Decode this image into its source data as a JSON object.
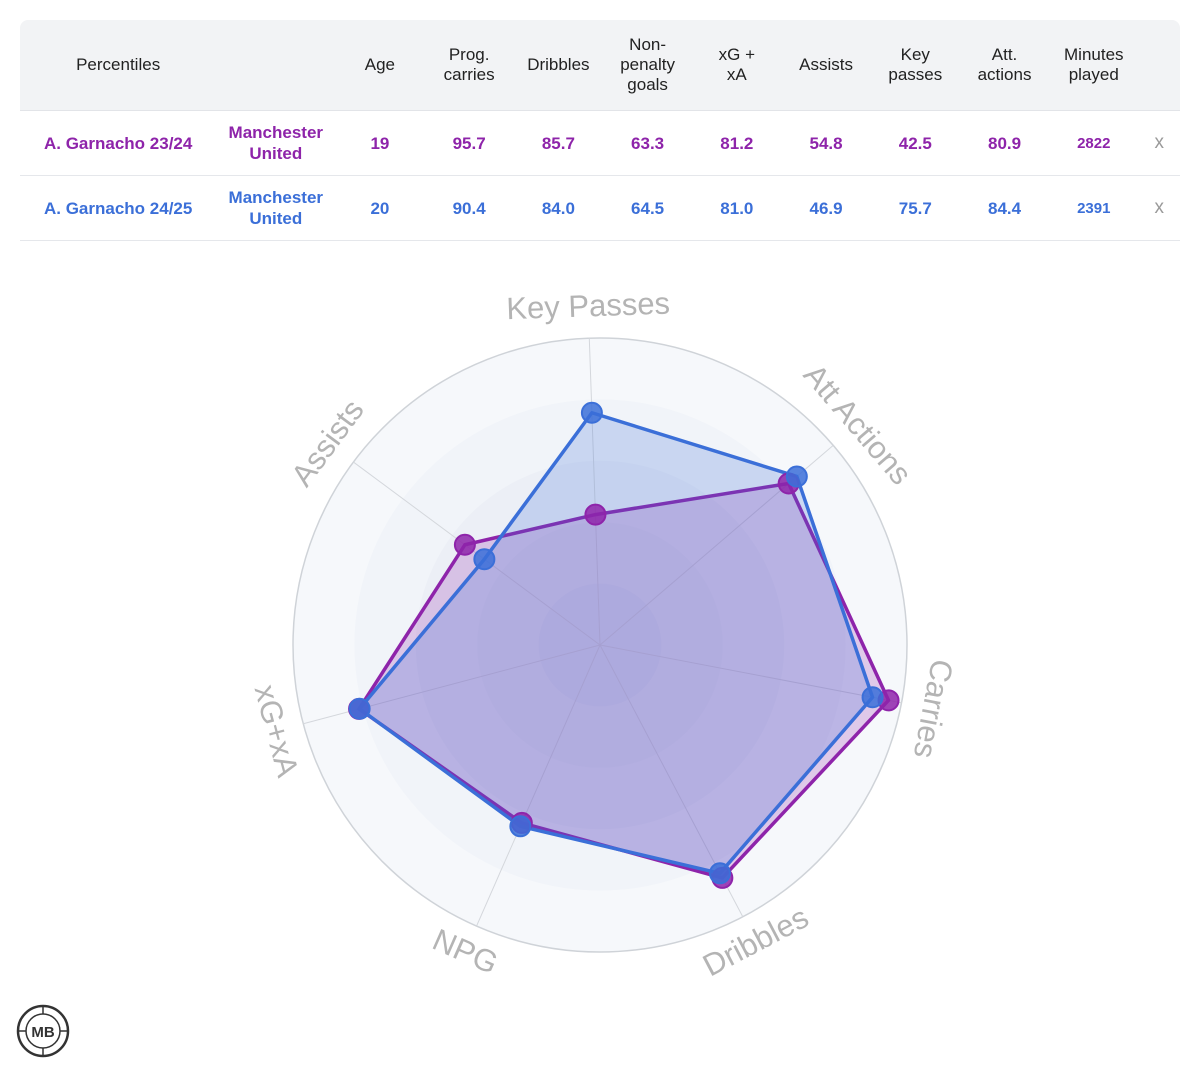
{
  "table": {
    "headers": [
      "Percentiles",
      "",
      "Age",
      "Prog.\ncarries",
      "Dribbles",
      "Non-\npenalty\ngoals",
      "xG +\nxA",
      "Assists",
      "Key\npasses",
      "Att.\nactions",
      "Minutes\nplayed"
    ],
    "rows": [
      {
        "name": "A. Garnacho 23/24",
        "team": "Manchester\nUnited",
        "values": [
          "19",
          "95.7",
          "85.7",
          "63.3",
          "81.2",
          "54.8",
          "42.5",
          "80.9",
          "2822"
        ],
        "remove": "x",
        "color": "#8e24aa"
      },
      {
        "name": "A. Garnacho 24/25",
        "team": "Manchester\nUnited",
        "values": [
          "20",
          "90.4",
          "84.0",
          "64.5",
          "81.0",
          "46.9",
          "75.7",
          "84.4",
          "2391"
        ],
        "remove": "x",
        "color": "#3b6fd8"
      }
    ]
  },
  "logo_text": "MB",
  "chart_data": {
    "type": "radar",
    "axes": [
      "Key Passes",
      "Att Actions",
      "Carries",
      "Dribbles",
      "NPG",
      "xG+xA",
      "Assists"
    ],
    "range": [
      0,
      100
    ],
    "series": [
      {
        "name": "A. Garnacho 23/24",
        "values": [
          42.5,
          80.9,
          95.7,
          85.7,
          63.3,
          81.2,
          54.8
        ],
        "color": "#8e24aa"
      },
      {
        "name": "A. Garnacho 24/25",
        "values": [
          75.7,
          84.4,
          90.4,
          84.0,
          64.5,
          81.0,
          46.9
        ],
        "color": "#3b6fd8"
      }
    ]
  }
}
